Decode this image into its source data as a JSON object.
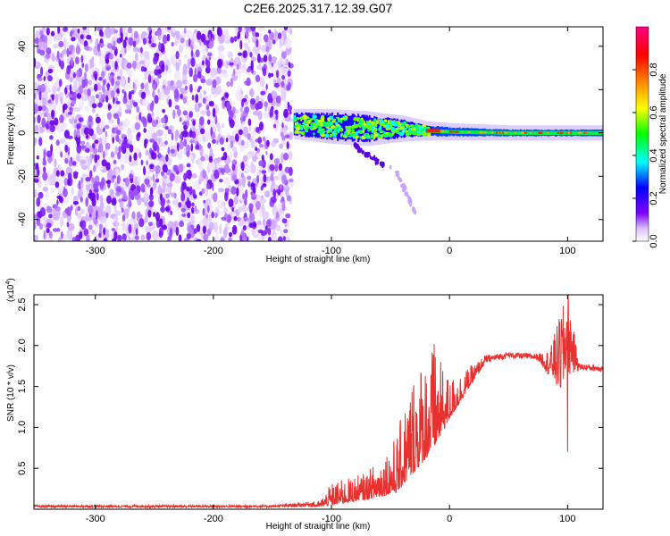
{
  "chart_data": [
    {
      "type": "heatmap",
      "title": "C2E6.2025.317.12.39.G07",
      "xlabel": "Height of straight line (km)",
      "ylabel": "Frequency (Hz)",
      "xlim": [
        -352,
        130
      ],
      "ylim": [
        -50,
        49
      ],
      "xticks": [
        -300,
        -200,
        -100,
        0,
        100
      ],
      "yticks": [
        -40,
        -20,
        0,
        20,
        40
      ],
      "colorbar": {
        "label": "Normalized spectral amplitude",
        "range": [
          0.0,
          1.0
        ],
        "ticks": [
          "0.0",
          "0.2",
          "0.4",
          "0.6",
          "0.8"
        ],
        "tick_values": [
          0.0,
          0.2,
          0.4,
          0.6,
          0.8
        ],
        "colors": [
          "#ffffff",
          "#d9c0ff",
          "#7f00ff",
          "#0000ff",
          "#00ffff",
          "#00ff00",
          "#ffff00",
          "#ff7f00",
          "#ff0000",
          "#ff0080"
        ]
      },
      "regions": {
        "noise_field": {
          "x": [
            -352,
            -134
          ],
          "y": [
            -50,
            49
          ],
          "amplitude": [
            0.0,
            0.2
          ]
        },
        "signal_trace": [
          {
            "x": -130,
            "f_center": 4,
            "f_halfwidth": 5
          },
          {
            "x": -100,
            "f_center": 3,
            "f_halfwidth": 6
          },
          {
            "x": -70,
            "f_center": 2,
            "f_halfwidth": 6
          },
          {
            "x": -40,
            "f_center": 2,
            "f_halfwidth": 4
          },
          {
            "x": -20,
            "f_center": 1,
            "f_halfwidth": 2.5
          },
          {
            "x": 0,
            "f_center": 0.5,
            "f_halfwidth": 2
          },
          {
            "x": 50,
            "f_center": 0,
            "f_halfwidth": 1.5
          },
          {
            "x": 130,
            "f_center": 0,
            "f_halfwidth": 1.5
          }
        ],
        "side_branch": [
          {
            "x": -80,
            "f": -6
          },
          {
            "x": -65,
            "f": -12
          },
          {
            "x": -45,
            "f": -18
          },
          {
            "x": -28,
            "f": -38
          }
        ]
      }
    },
    {
      "type": "line",
      "xlabel": "Height of straight line (km)",
      "ylabel": "SNR (10 * v/v)",
      "scale_label": "(x10",
      "scale_exponent": "4",
      "scale_suffix": ")",
      "xlim": [
        -352,
        130
      ],
      "ylim": [
        0,
        2.62
      ],
      "xticks": [
        -300,
        -200,
        -100,
        0,
        100
      ],
      "yticks": [
        "0.5",
        "1.0",
        "1.5",
        "2.0",
        "2.5"
      ],
      "ytick_values": [
        0.5,
        1.0,
        1.5,
        2.0,
        2.5
      ],
      "series": [
        {
          "name": "SNR",
          "color": "#e8302f",
          "envelope": [
            {
              "x": -352,
              "base": 0.02,
              "peak": 0.05
            },
            {
              "x": -150,
              "base": 0.02,
              "peak": 0.05
            },
            {
              "x": -110,
              "base": 0.03,
              "peak": 0.1
            },
            {
              "x": -100,
              "base": 0.05,
              "peak": 0.32
            },
            {
              "x": -70,
              "base": 0.12,
              "peak": 0.45
            },
            {
              "x": -45,
              "base": 0.2,
              "peak": 0.9
            },
            {
              "x": -30,
              "base": 0.45,
              "peak": 1.75
            },
            {
              "x": -15,
              "base": 0.7,
              "peak": 2.0
            },
            {
              "x": 0,
              "base": 1.1,
              "peak": 1.6
            },
            {
              "x": 15,
              "base": 1.45,
              "peak": 1.72
            },
            {
              "x": 30,
              "base": 1.78,
              "peak": 1.88
            },
            {
              "x": 50,
              "base": 1.85,
              "peak": 1.92
            },
            {
              "x": 75,
              "base": 1.82,
              "peak": 1.9
            },
            {
              "x": 85,
              "base": 1.6,
              "peak": 1.95
            },
            {
              "x": 95,
              "base": 1.35,
              "peak": 2.45
            },
            {
              "x": 100,
              "base": 1.6,
              "peak": 2.62
            },
            {
              "x": 110,
              "base": 1.7,
              "peak": 1.78
            },
            {
              "x": 130,
              "base": 1.68,
              "peak": 1.76
            }
          ],
          "spikes": [
            {
              "x": -13,
              "y": 2.02
            },
            {
              "x": 100,
              "y": 0.7
            },
            {
              "x": 100.5,
              "y": 2.62
            }
          ]
        }
      ]
    }
  ]
}
